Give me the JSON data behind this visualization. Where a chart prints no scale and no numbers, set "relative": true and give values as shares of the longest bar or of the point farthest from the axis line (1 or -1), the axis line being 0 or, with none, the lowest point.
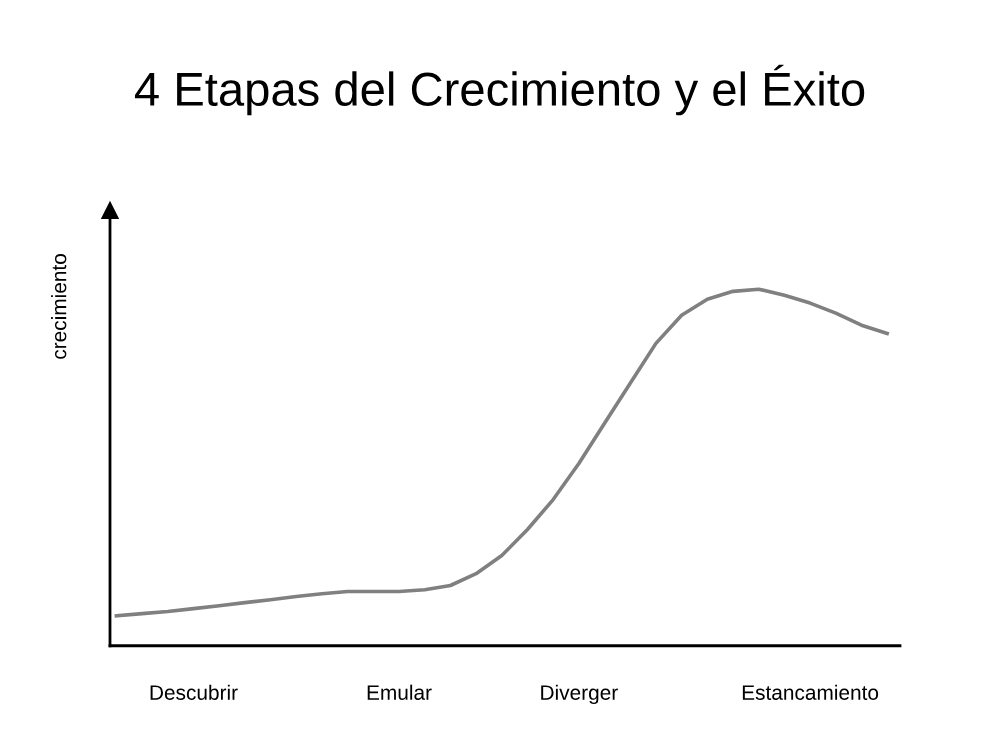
{
  "chart_data": {
    "type": "line",
    "title": "4 Etapas del Crecimiento y el Éxito",
    "ylabel": "crecimiento",
    "relative": true,
    "categories": [
      null,
      null,
      null,
      "Descubrir",
      null,
      null,
      null,
      null,
      null,
      null,
      null,
      "Emular",
      null,
      null,
      null,
      null,
      null,
      null,
      "Diverger",
      null,
      null,
      null,
      null,
      null,
      null,
      null,
      null,
      "Estancamiento",
      null,
      null,
      null
    ],
    "series": [
      {
        "color": "#808080",
        "values": [
          0.084,
          0.09,
          0.096,
          0.104,
          0.112,
          0.121,
          0.129,
          0.138,
          0.146,
          0.152,
          0.152,
          0.152,
          0.157,
          0.169,
          0.202,
          0.253,
          0.326,
          0.41,
          0.511,
          0.624,
          0.736,
          0.848,
          0.927,
          0.972,
          0.994,
          1.0,
          0.983,
          0.961,
          0.933,
          0.899,
          0.876
        ]
      }
    ],
    "grid": false,
    "legend": false,
    "marker": "none",
    "line_style": "solid",
    "tick_labels": "x"
  }
}
